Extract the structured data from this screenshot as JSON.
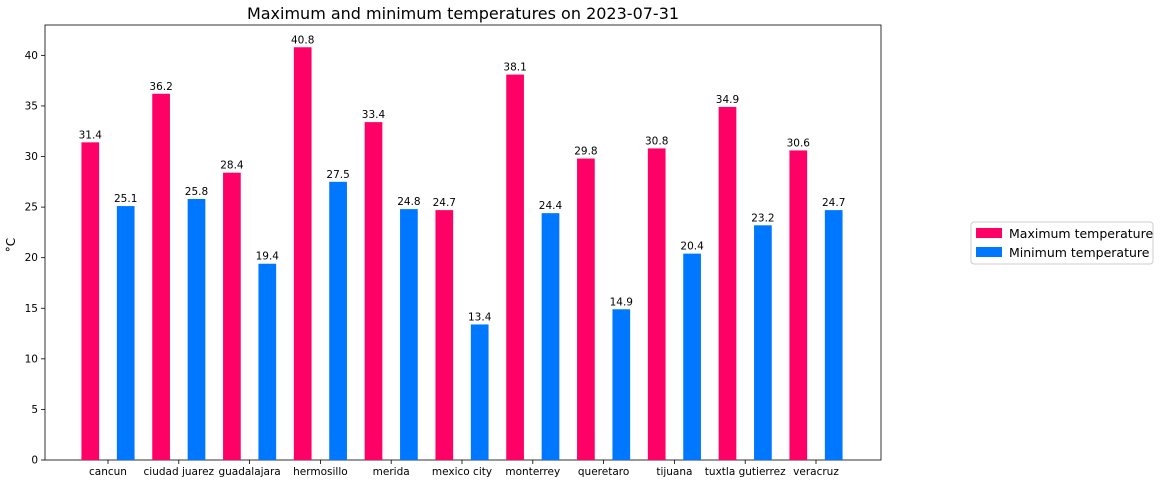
{
  "chart_data": {
    "type": "bar",
    "title": "Maximum and minimum temperatures on 2023-07-31",
    "xlabel": "",
    "ylabel": "°C",
    "ylim": [
      0,
      43
    ],
    "yticks": [
      0,
      5,
      10,
      15,
      20,
      25,
      30,
      35,
      40
    ],
    "categories": [
      "cancun",
      "ciudad juarez",
      "guadalajara",
      "hermosillo",
      "merida",
      "mexico city",
      "monterrey",
      "queretaro",
      "tijuana",
      "tuxtla gutierrez",
      "veracruz"
    ],
    "series": [
      {
        "name": "Maximum temperature",
        "color": "#ff0066",
        "values": [
          31.4,
          36.2,
          28.4,
          40.8,
          33.4,
          24.7,
          38.1,
          29.8,
          30.8,
          34.9,
          30.6
        ]
      },
      {
        "name": "Minimum temperature",
        "color": "#0077ff",
        "values": [
          25.1,
          25.8,
          19.4,
          27.5,
          24.8,
          13.4,
          24.4,
          14.9,
          20.4,
          23.2,
          24.7
        ]
      }
    ],
    "data_labels": true,
    "grid": false,
    "legend_position": "right"
  }
}
